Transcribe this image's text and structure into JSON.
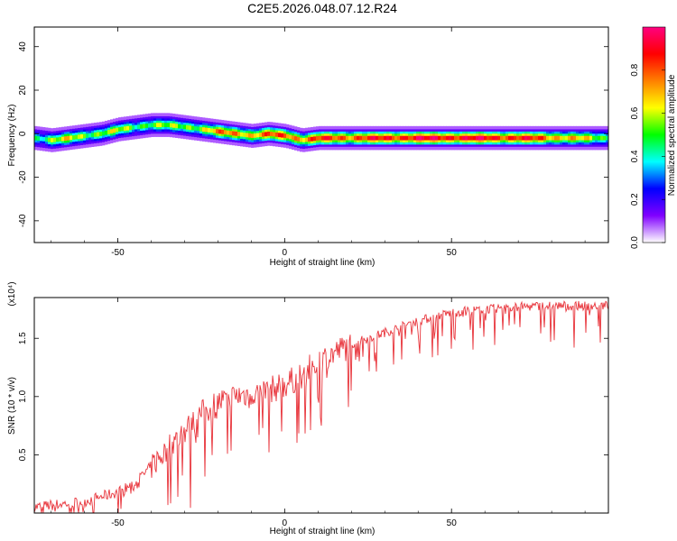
{
  "title": "C2E5.2026.048.07.12.R24",
  "colors": {
    "snr_line": "#e8333a",
    "axis": "#000000"
  },
  "chart_data": [
    {
      "type": "heatmap",
      "xlabel": "Height of straight line (km)",
      "ylabel": "Frequency (Hz)",
      "xlim": [
        -75,
        97
      ],
      "ylim": [
        -50,
        49
      ],
      "xticks": [
        "-50",
        "0",
        "50"
      ],
      "yticks": [
        "40",
        "20",
        "0",
        "-20",
        "-40"
      ],
      "colorbar": {
        "label": "Normalized spectral amplitude",
        "range": [
          0,
          1
        ],
        "ticks": [
          "0.0",
          "0.2",
          "0.4",
          "0.6",
          "0.8"
        ],
        "stops": [
          "#ffffff",
          "#8000ff",
          "#0000ff",
          "#00ffff",
          "#00ff00",
          "#ffff00",
          "#ff8000",
          "#ff0000",
          "#ff0080"
        ]
      },
      "ridge": [
        {
          "x": -75,
          "f": -2,
          "a": 0.45
        },
        {
          "x": -70,
          "f": -3,
          "a": 0.55
        },
        {
          "x": -65,
          "f": -2,
          "a": 0.6
        },
        {
          "x": -60,
          "f": -1,
          "a": 0.55
        },
        {
          "x": -55,
          "f": 0,
          "a": 0.55
        },
        {
          "x": -50,
          "f": 2,
          "a": 0.55
        },
        {
          "x": -45,
          "f": 3,
          "a": 0.5
        },
        {
          "x": -40,
          "f": 4,
          "a": 0.55
        },
        {
          "x": -35,
          "f": 4,
          "a": 0.5
        },
        {
          "x": -30,
          "f": 3,
          "a": 0.55
        },
        {
          "x": -25,
          "f": 2,
          "a": 0.6
        },
        {
          "x": -20,
          "f": 1,
          "a": 0.7
        },
        {
          "x": -15,
          "f": 0,
          "a": 0.75
        },
        {
          "x": -10,
          "f": -1,
          "a": 0.7
        },
        {
          "x": -5,
          "f": 0,
          "a": 0.75
        },
        {
          "x": 0,
          "f": -1,
          "a": 0.8
        },
        {
          "x": 5,
          "f": -3,
          "a": 0.75
        },
        {
          "x": 10,
          "f": -2,
          "a": 0.8
        },
        {
          "x": 20,
          "f": -2,
          "a": 0.8
        },
        {
          "x": 30,
          "f": -2,
          "a": 0.85
        },
        {
          "x": 40,
          "f": -2,
          "a": 0.9
        },
        {
          "x": 50,
          "f": -2,
          "a": 0.9
        },
        {
          "x": 60,
          "f": -2,
          "a": 0.88
        },
        {
          "x": 70,
          "f": -2,
          "a": 0.85
        },
        {
          "x": 80,
          "f": -2,
          "a": 0.75
        },
        {
          "x": 90,
          "f": -2,
          "a": 0.6
        },
        {
          "x": 97,
          "f": -2,
          "a": 0.5
        }
      ]
    },
    {
      "type": "line",
      "xlabel": "Height of straight line (km)",
      "ylabel": "SNR (10 * v/v)",
      "yscale_note": "(x10⁴)",
      "xlim": [
        -75,
        97
      ],
      "ylim": [
        0,
        1.85
      ],
      "xticks": [
        "-50",
        "0",
        "50"
      ],
      "yticks": [
        "0.5",
        "1.0",
        "1.5"
      ],
      "series": [
        {
          "trend": [
            {
              "x": -75,
              "y": 0.05
            },
            {
              "x": -60,
              "y": 0.1
            },
            {
              "x": -50,
              "y": 0.18
            },
            {
              "x": -45,
              "y": 0.25
            },
            {
              "x": -40,
              "y": 0.4
            },
            {
              "x": -35,
              "y": 0.55
            },
            {
              "x": -30,
              "y": 0.7
            },
            {
              "x": -25,
              "y": 0.85
            },
            {
              "x": -20,
              "y": 0.95
            },
            {
              "x": -15,
              "y": 1.0
            },
            {
              "x": -10,
              "y": 1.03
            },
            {
              "x": -5,
              "y": 1.05
            },
            {
              "x": 0,
              "y": 1.1
            },
            {
              "x": 5,
              "y": 1.18
            },
            {
              "x": 10,
              "y": 1.3
            },
            {
              "x": 20,
              "y": 1.45
            },
            {
              "x": 30,
              "y": 1.55
            },
            {
              "x": 40,
              "y": 1.65
            },
            {
              "x": 50,
              "y": 1.72
            },
            {
              "x": 60,
              "y": 1.75
            },
            {
              "x": 70,
              "y": 1.77
            },
            {
              "x": 80,
              "y": 1.78
            },
            {
              "x": 97,
              "y": 1.78
            }
          ]
        }
      ]
    }
  ]
}
